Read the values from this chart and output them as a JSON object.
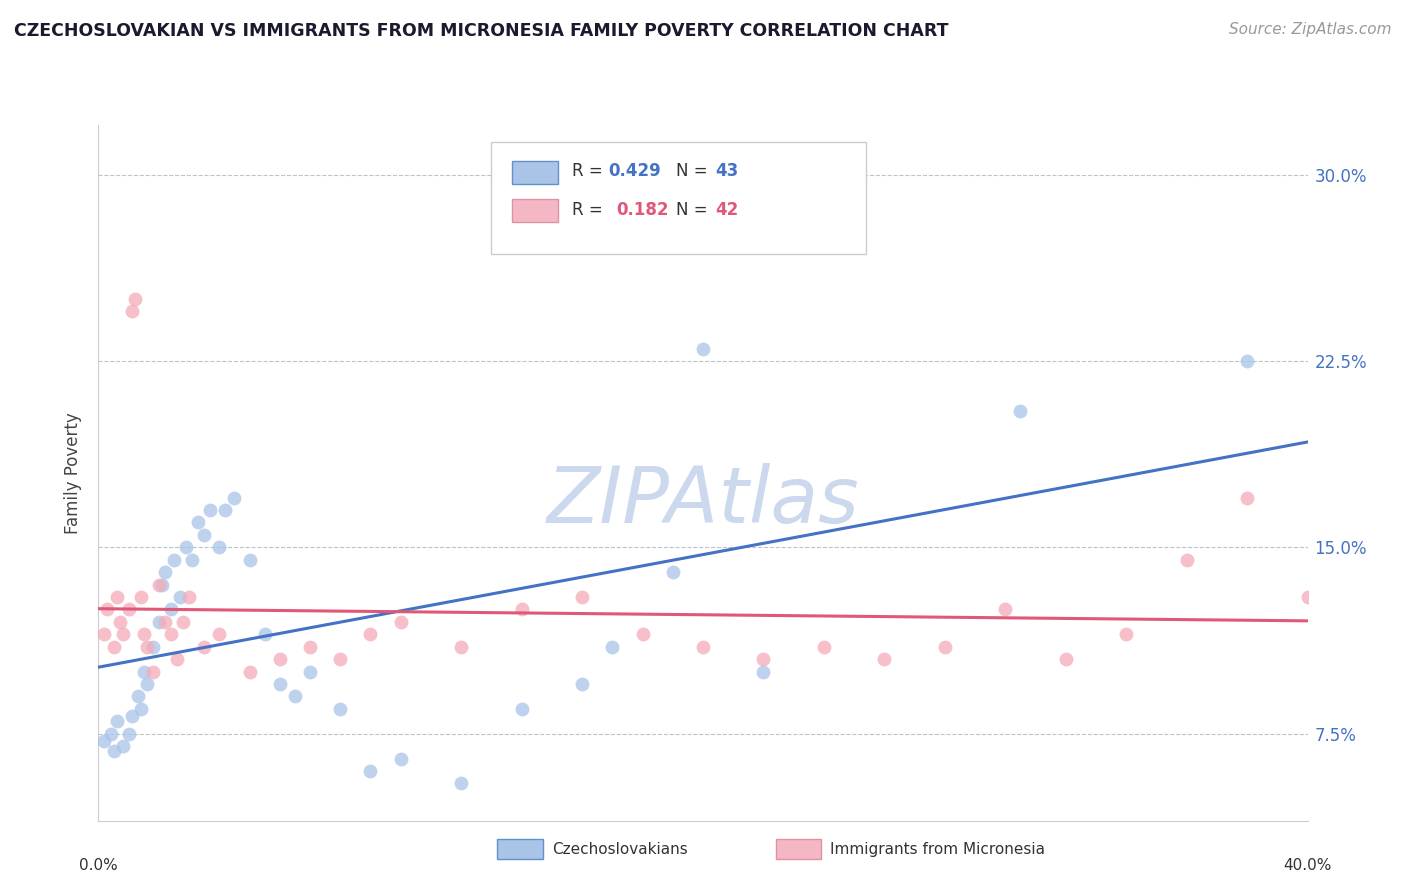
{
  "title": "CZECHOSLOVAKIAN VS IMMIGRANTS FROM MICRONESIA FAMILY POVERTY CORRELATION CHART",
  "source": "Source: ZipAtlas.com",
  "ylabel": "Family Poverty",
  "yticks": [
    7.5,
    15.0,
    22.5,
    30.0
  ],
  "ytick_labels": [
    "7.5%",
    "15.0%",
    "22.5%",
    "30.0%"
  ],
  "xmin": 0.0,
  "xmax": 40.0,
  "ymin": 4.0,
  "ymax": 32.0,
  "scatter1_color": "#a8c4e8",
  "scatter2_color": "#f4aab8",
  "line1_color": "#4472c4",
  "line2_color": "#e05878",
  "watermark": "ZIPAtlas",
  "watermark_color": "#ccd8ee",
  "bottom_legend1": "Czechoslovakians",
  "bottom_legend2": "Immigrants from Micronesia",
  "R1": "0.429",
  "N1": "43",
  "R2": "0.182",
  "N2": "42",
  "czech_x": [
    0.2,
    0.4,
    0.5,
    0.6,
    0.8,
    1.0,
    1.1,
    1.3,
    1.4,
    1.5,
    1.6,
    1.8,
    2.0,
    2.1,
    2.2,
    2.4,
    2.5,
    2.7,
    2.9,
    3.1,
    3.3,
    3.5,
    3.7,
    4.0,
    4.2,
    4.5,
    5.0,
    5.5,
    6.0,
    6.5,
    7.0,
    8.0,
    9.0,
    10.0,
    12.0,
    14.0,
    16.0,
    17.0,
    19.0,
    20.0,
    22.0,
    30.5,
    38.0
  ],
  "czech_y": [
    7.2,
    7.5,
    6.8,
    8.0,
    7.0,
    7.5,
    8.2,
    9.0,
    8.5,
    10.0,
    9.5,
    11.0,
    12.0,
    13.5,
    14.0,
    12.5,
    14.5,
    13.0,
    15.0,
    14.5,
    16.0,
    15.5,
    16.5,
    15.0,
    16.5,
    17.0,
    14.5,
    11.5,
    9.5,
    9.0,
    10.0,
    8.5,
    6.0,
    6.5,
    5.5,
    8.5,
    9.5,
    11.0,
    14.0,
    23.0,
    10.0,
    20.5,
    22.5
  ],
  "micro_x": [
    0.2,
    0.3,
    0.5,
    0.6,
    0.7,
    0.8,
    1.0,
    1.1,
    1.2,
    1.4,
    1.5,
    1.6,
    1.8,
    2.0,
    2.2,
    2.4,
    2.6,
    2.8,
    3.0,
    3.5,
    4.0,
    5.0,
    6.0,
    7.0,
    8.0,
    9.0,
    10.0,
    12.0,
    14.0,
    16.0,
    18.0,
    20.0,
    22.0,
    24.0,
    26.0,
    28.0,
    30.0,
    32.0,
    34.0,
    36.0,
    38.0,
    40.0
  ],
  "micro_y": [
    11.5,
    12.5,
    11.0,
    13.0,
    12.0,
    11.5,
    12.5,
    24.5,
    25.0,
    13.0,
    11.5,
    11.0,
    10.0,
    13.5,
    12.0,
    11.5,
    10.5,
    12.0,
    13.0,
    11.0,
    11.5,
    10.0,
    10.5,
    11.0,
    10.5,
    11.5,
    12.0,
    11.0,
    12.5,
    13.0,
    11.5,
    11.0,
    10.5,
    11.0,
    10.5,
    11.0,
    12.5,
    10.5,
    11.5,
    14.5,
    17.0,
    13.0
  ]
}
